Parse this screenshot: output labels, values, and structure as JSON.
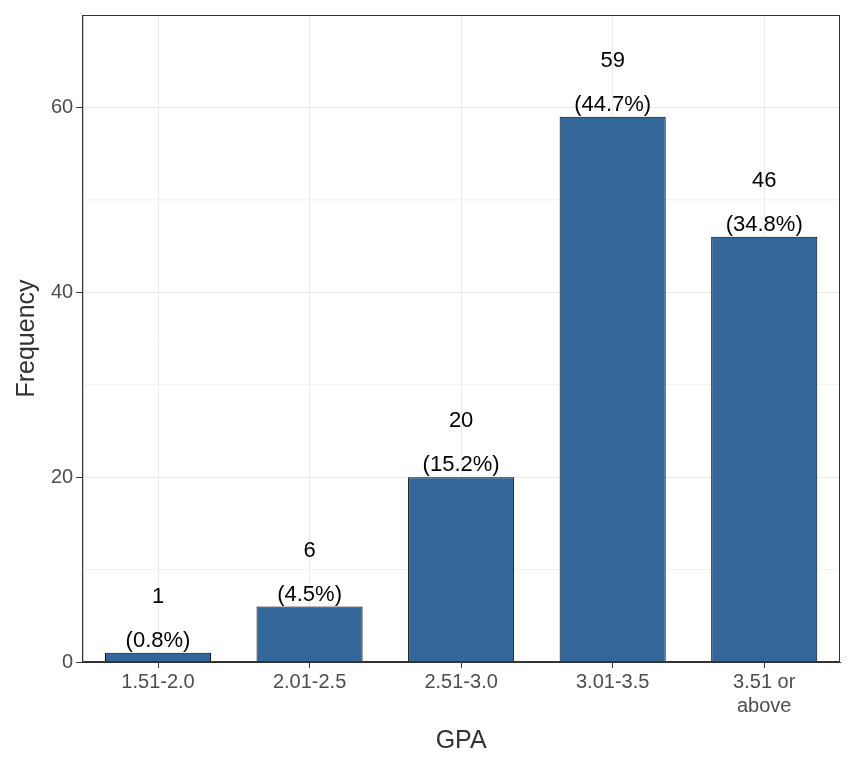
{
  "chart_data": {
    "type": "bar",
    "categories": [
      "1.51-2.0",
      "2.01-2.5",
      "2.51-3.0",
      "3.01-3.5",
      "3.51 or above"
    ],
    "values": [
      1,
      6,
      20,
      59,
      46
    ],
    "value_labels": [
      [
        "1",
        "(0.8%)"
      ],
      [
        "6",
        "(4.5%)"
      ],
      [
        "20",
        "(15.2%)"
      ],
      [
        "59",
        "(44.7%)"
      ],
      [
        "46",
        "(34.8%)"
      ]
    ],
    "color": "#336699",
    "xlabel": "GPA",
    "ylabel": "Frequency",
    "ylim": [
      0,
      70
    ],
    "yticks": [
      0,
      20,
      40,
      60
    ],
    "grid": true,
    "data_labels": true
  }
}
